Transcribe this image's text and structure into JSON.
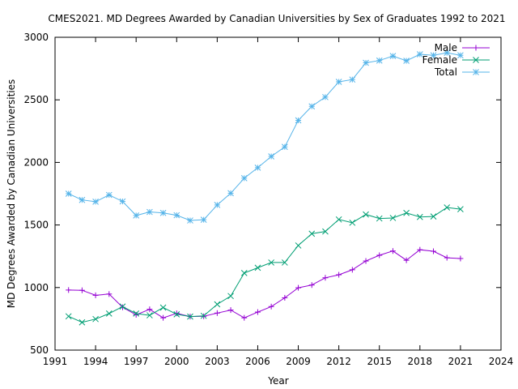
{
  "chart_data": {
    "type": "line",
    "title": "CMES2021. MD Degrees Awarded by Canadian Universities by Sex of Graduates 1992 to 2021",
    "xlabel": "Year",
    "ylabel": "MD Degrees Awarded by Canadian Universities",
    "xlim": [
      1991,
      2024
    ],
    "ylim": [
      500,
      3000
    ],
    "xticks": [
      1991,
      1994,
      1997,
      2000,
      2003,
      2006,
      2009,
      2012,
      2015,
      2018,
      2021,
      2024
    ],
    "yticks": [
      500,
      1000,
      1500,
      2000,
      2500,
      3000
    ],
    "grid": false,
    "legend_position": "top-right",
    "x": [
      1992,
      1993,
      1994,
      1995,
      1996,
      1997,
      1998,
      1999,
      2000,
      2001,
      2002,
      2003,
      2004,
      2005,
      2006,
      2007,
      2008,
      2009,
      2010,
      2011,
      2012,
      2013,
      2014,
      2015,
      2016,
      2017,
      2018,
      2019,
      2020,
      2021
    ],
    "series": [
      {
        "name": "Male",
        "color": "#9400d3",
        "marker": "plus",
        "values": [
          980,
          978,
          938,
          948,
          842,
          782,
          826,
          758,
          794,
          768,
          770,
          796,
          820,
          758,
          804,
          848,
          918,
          998,
          1020,
          1078,
          1102,
          1142,
          1212,
          1258,
          1292,
          1218,
          1302,
          1290,
          1238,
          1232
        ]
      },
      {
        "name": "Female",
        "color": "#009e73",
        "marker": "cross",
        "values": [
          770,
          722,
          748,
          792,
          848,
          792,
          778,
          840,
          786,
          768,
          774,
          866,
          932,
          1116,
          1158,
          1200,
          1200,
          1336,
          1430,
          1448,
          1544,
          1518,
          1584,
          1552,
          1556,
          1596,
          1564,
          1568,
          1640,
          1626
        ]
      },
      {
        "name": "Total",
        "color": "#56b4e9",
        "marker": "star",
        "values": [
          1750,
          1700,
          1686,
          1740,
          1688,
          1576,
          1604,
          1596,
          1578,
          1536,
          1542,
          1660,
          1754,
          1874,
          1958,
          2048,
          2124,
          2336,
          2448,
          2522,
          2644,
          2662,
          2796,
          2814,
          2850,
          2812,
          2864,
          2856,
          2876,
          2856
        ]
      }
    ]
  }
}
